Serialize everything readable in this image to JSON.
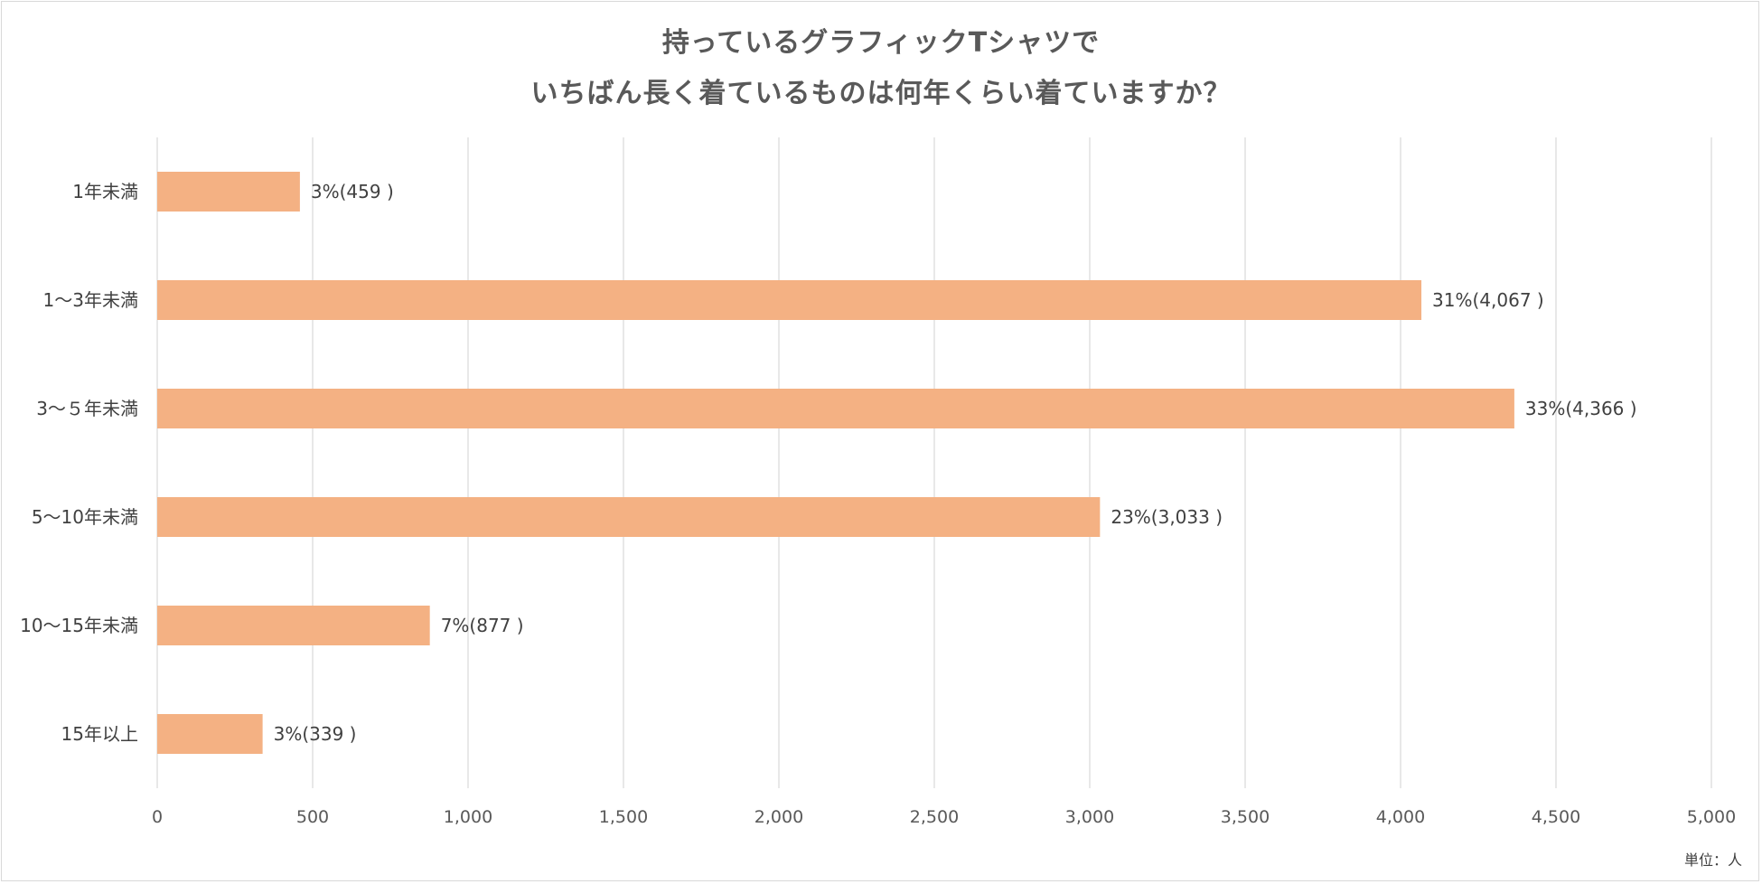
{
  "chart_data": {
    "type": "bar",
    "orientation": "horizontal",
    "title": [
      "持っているグラフィックTシャツで",
      "いちばん長く着ているものは何年くらい着ていますか？"
    ],
    "categories": [
      "1年未満",
      "1〜3年未満",
      "3〜５年未満",
      "5〜10年未満",
      "10〜15年未満",
      "15年以上"
    ],
    "values": [
      459,
      4067,
      4366,
      3033,
      877,
      339
    ],
    "data_labels": [
      "3%(459 )",
      "31%(4,067 )",
      "33%(4,366 )",
      "23%(3,033 )",
      "7%(877 )",
      "3%(339 )"
    ],
    "xlim": [
      0,
      5000
    ],
    "x_ticks": [
      0,
      500,
      1000,
      1500,
      2000,
      2500,
      3000,
      3500,
      4000,
      4500,
      5000
    ],
    "x_tick_labels": [
      "0",
      "500",
      "1,000",
      "1,500",
      "2,000",
      "2,500",
      "3,000",
      "3,500",
      "4,000",
      "4,500",
      "5,000"
    ],
    "grid": "vertical",
    "bar_color": "#F4B183",
    "grid_color": "#d9d9d9",
    "unit_label": "単位：人"
  }
}
